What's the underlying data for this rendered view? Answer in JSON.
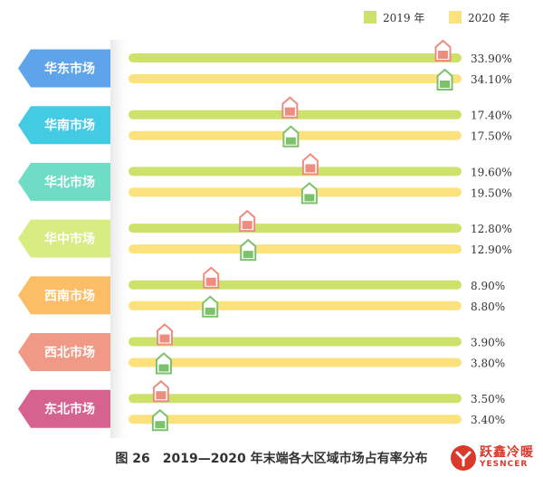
{
  "chart_data": {
    "type": "bar",
    "title": "",
    "xlabel": "",
    "ylabel": "",
    "xlim": [
      0,
      40
    ],
    "grid": false,
    "legend_position": "top-right",
    "categories": [
      "华东市场",
      "华南市场",
      "华北市场",
      "华中市场",
      "西南市场",
      "西北市场",
      "东北市场"
    ],
    "series": [
      {
        "name": "2019 年",
        "color": "#cde26a",
        "marker_color": "#ee8d7f",
        "values": [
          33.9,
          17.4,
          19.6,
          12.8,
          8.9,
          3.9,
          3.5
        ],
        "labels": [
          "33.90%",
          "17.40%",
          "19.60%",
          "12.80%",
          "8.90%",
          "3.90%",
          "3.50%"
        ]
      },
      {
        "name": "2020 年",
        "color": "#fbe27d",
        "marker_color": "#7cc26c",
        "values": [
          34.1,
          17.5,
          19.5,
          12.9,
          8.8,
          3.8,
          3.4
        ],
        "labels": [
          "34.10%",
          "17.50%",
          "19.50%",
          "12.90%",
          "8.80%",
          "3.80%",
          "3.40%"
        ]
      }
    ],
    "category_colors": [
      "#5fa4ea",
      "#43cbe3",
      "#6fdcc5",
      "#d7ec82",
      "#fbbe66",
      "#f19987",
      "#d6628f"
    ]
  },
  "caption": "图 26　2019—2020 年末端各大区域市场占有率分布",
  "logo": {
    "name_cn": "跃鑫冷暖",
    "name_en": "YESNCER",
    "color": "#d93a2b"
  }
}
